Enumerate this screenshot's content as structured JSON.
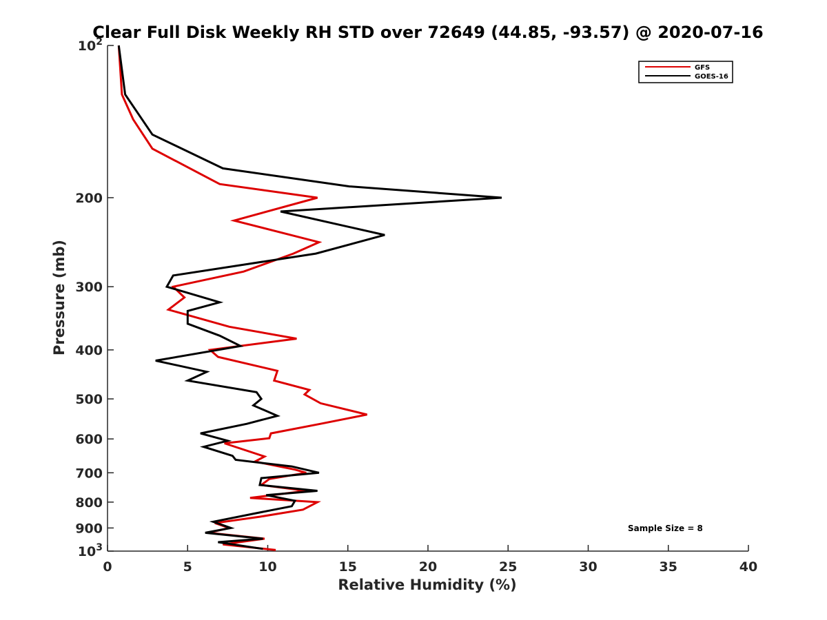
{
  "chart_data": {
    "type": "line",
    "title": "Clear Full Disk Weekly RH STD over 72649 (44.85, -93.57) @ 2020-07-16",
    "xlabel": "Relative Humidity (%)",
    "ylabel": "Pressure (mb)",
    "xlim": [
      0,
      40
    ],
    "ylim": [
      100,
      1000
    ],
    "y_scale": "log",
    "y_reversed": true,
    "x_ticks": [
      0,
      5,
      10,
      15,
      20,
      25,
      30,
      35,
      40
    ],
    "x_tick_labels": [
      "0",
      "5",
      "10",
      "15",
      "20",
      "25",
      "30",
      "35",
      "40"
    ],
    "y_ticks": [
      100,
      200,
      300,
      400,
      500,
      600,
      700,
      800,
      900,
      1000
    ],
    "y_tick_labels": [
      {
        "base": "10",
        "exp": "2"
      },
      {
        "base": "200",
        "exp": ""
      },
      {
        "base": "300",
        "exp": ""
      },
      {
        "base": "400",
        "exp": ""
      },
      {
        "base": "500",
        "exp": ""
      },
      {
        "base": "600",
        "exp": ""
      },
      {
        "base": "700",
        "exp": ""
      },
      {
        "base": "800",
        "exp": ""
      },
      {
        "base": "900",
        "exp": ""
      },
      {
        "base": "10",
        "exp": "3"
      }
    ],
    "grid": false,
    "legend_position": "top-right",
    "annotation": "Sample Size = 8",
    "series": [
      {
        "name": "GFS",
        "color": "#dd0000",
        "points": [
          [
            0.7,
            100
          ],
          [
            0.9,
            125
          ],
          [
            1.6,
            140
          ],
          [
            2.8,
            160
          ],
          [
            7,
            188
          ],
          [
            13.1,
            200
          ],
          [
            7.9,
            222
          ],
          [
            13.2,
            245
          ],
          [
            11.6,
            258
          ],
          [
            8.5,
            280
          ],
          [
            4.1,
            300
          ],
          [
            4.8,
            315
          ],
          [
            3.8,
            333
          ],
          [
            7.6,
            360
          ],
          [
            11.8,
            380
          ],
          [
            6.4,
            400
          ],
          [
            6.9,
            413
          ],
          [
            10.6,
            440
          ],
          [
            10.4,
            460
          ],
          [
            12.6,
            480
          ],
          [
            12.3,
            490
          ],
          [
            13.3,
            510
          ],
          [
            16.2,
            537
          ],
          [
            13.3,
            560
          ],
          [
            10.2,
            585
          ],
          [
            10.1,
            598
          ],
          [
            7.3,
            612
          ],
          [
            9.8,
            650
          ],
          [
            9.2,
            665
          ],
          [
            11.7,
            690
          ],
          [
            12.4,
            700
          ],
          [
            10.1,
            720
          ],
          [
            9.6,
            740
          ],
          [
            12.4,
            760
          ],
          [
            8.9,
            785
          ],
          [
            13.1,
            800
          ],
          [
            12.2,
            828
          ],
          [
            9.5,
            855
          ],
          [
            6.7,
            880
          ],
          [
            7.6,
            900
          ],
          [
            6.3,
            920
          ],
          [
            9.8,
            945
          ],
          [
            7.2,
            970
          ],
          [
            10.5,
            995
          ]
        ]
      },
      {
        "name": "GOES-16",
        "color": "#000000",
        "points": [
          [
            0.7,
            100
          ],
          [
            1.1,
            125
          ],
          [
            2.8,
            150
          ],
          [
            7.2,
            175
          ],
          [
            15.1,
            190
          ],
          [
            24.6,
            200
          ],
          [
            10.8,
            213
          ],
          [
            17.3,
            237
          ],
          [
            13,
            258
          ],
          [
            4.1,
            285
          ],
          [
            3.7,
            300
          ],
          [
            7,
            322
          ],
          [
            5,
            335
          ],
          [
            5,
            355
          ],
          [
            7,
            375
          ],
          [
            8.3,
            393
          ],
          [
            3,
            420
          ],
          [
            6.2,
            442
          ],
          [
            5,
            460
          ],
          [
            9.3,
            485
          ],
          [
            9.6,
            500
          ],
          [
            9.1,
            515
          ],
          [
            10.6,
            540
          ],
          [
            8.7,
            560
          ],
          [
            5.8,
            585
          ],
          [
            7.5,
            605
          ],
          [
            6,
            622
          ],
          [
            7.8,
            648
          ],
          [
            8,
            660
          ],
          [
            11.5,
            680
          ],
          [
            13.2,
            700
          ],
          [
            9.6,
            717
          ],
          [
            9.5,
            740
          ],
          [
            13.1,
            760
          ],
          [
            9.9,
            775
          ],
          [
            11.7,
            795
          ],
          [
            11.5,
            815
          ],
          [
            9.4,
            840
          ],
          [
            6.6,
            875
          ],
          [
            7.7,
            900
          ],
          [
            6.1,
            920
          ],
          [
            9.7,
            945
          ],
          [
            6.9,
            960
          ],
          [
            9.7,
            990
          ]
        ]
      }
    ]
  }
}
